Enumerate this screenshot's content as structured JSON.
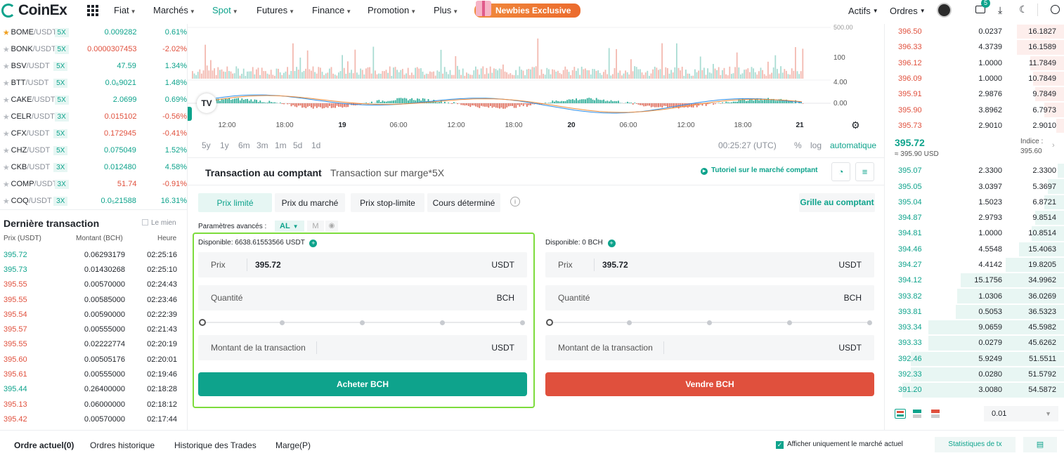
{
  "nav": {
    "logo": "CoinEx",
    "items": [
      {
        "label": "Fiat",
        "left": 162
      },
      {
        "label": "Marchés",
        "left": 218
      },
      {
        "label": "Spot",
        "left": 302
      },
      {
        "label": "Futures",
        "left": 365
      },
      {
        "label": "Finance",
        "left": 444
      },
      {
        "label": "Promotion",
        "left": 523
      },
      {
        "label": "Plus",
        "left": 617
      }
    ],
    "newbies": "Newbies Exclusive",
    "actifs": "Actifs",
    "ordres": "Ordres",
    "notif_count": "5"
  },
  "markets": [
    {
      "base": "BOME",
      "quote": "/USDT",
      "lev": "5X",
      "price": "0.009282",
      "change": "0.61%",
      "dir": "up",
      "fav": true
    },
    {
      "base": "BONK",
      "quote": "/USDT",
      "lev": "5X",
      "price": "0.0000307453",
      "change": "-2.02%",
      "dir": "down",
      "fav": false
    },
    {
      "base": "BSV",
      "quote": "/USDT",
      "lev": "5X",
      "price": "47.59",
      "change": "1.34%",
      "dir": "up",
      "fav": false
    },
    {
      "base": "BTT",
      "quote": "/USDT",
      "lev": "5X",
      "price": "0.0₆9021",
      "change": "1.48%",
      "dir": "up",
      "fav": false
    },
    {
      "base": "CAKE",
      "quote": "/USDT",
      "lev": "5X",
      "price": "2.0699",
      "change": "0.69%",
      "dir": "up",
      "fav": false
    },
    {
      "base": "CELR",
      "quote": "/USDT",
      "lev": "3X",
      "price": "0.015102",
      "change": "-0.56%",
      "dir": "down",
      "fav": false
    },
    {
      "base": "CFX",
      "quote": "/USDT",
      "lev": "5X",
      "price": "0.172945",
      "change": "-0.41%",
      "dir": "down",
      "fav": false
    },
    {
      "base": "CHZ",
      "quote": "/USDT",
      "lev": "5X",
      "price": "0.075049",
      "change": "1.52%",
      "dir": "up",
      "fav": false
    },
    {
      "base": "CKB",
      "quote": "/USDT",
      "lev": "3X",
      "price": "0.012480",
      "change": "4.58%",
      "dir": "up",
      "fav": false
    },
    {
      "base": "COMP",
      "quote": "/USDT",
      "lev": "3X",
      "price": "51.74",
      "change": "-0.91%",
      "dir": "down",
      "fav": false
    },
    {
      "base": "COQ",
      "quote": "/USDT",
      "lev": "3X",
      "price": "0.0₅21588",
      "change": "16.31%",
      "dir": "up",
      "fav": false
    }
  ],
  "last_trade": {
    "title": "Dernière transaction",
    "mine": "Le mien",
    "head_price": "Prix (USDT)",
    "head_amount": "Montant (BCH)",
    "head_time": "Heure",
    "rows": [
      {
        "p": "395.72",
        "a": "0.06293179",
        "t": "02:25:16",
        "dir": "up"
      },
      {
        "p": "395.73",
        "a": "0.01430268",
        "t": "02:25:10",
        "dir": "up"
      },
      {
        "p": "395.55",
        "a": "0.00570000",
        "t": "02:24:43",
        "dir": "down"
      },
      {
        "p": "395.55",
        "a": "0.00585000",
        "t": "02:23:46",
        "dir": "down"
      },
      {
        "p": "395.54",
        "a": "0.00590000",
        "t": "02:22:39",
        "dir": "down"
      },
      {
        "p": "395.57",
        "a": "0.00555000",
        "t": "02:21:43",
        "dir": "down"
      },
      {
        "p": "395.55",
        "a": "0.02222774",
        "t": "02:20:19",
        "dir": "down"
      },
      {
        "p": "395.60",
        "a": "0.00505176",
        "t": "02:20:01",
        "dir": "down"
      },
      {
        "p": "395.61",
        "a": "0.00555000",
        "t": "02:19:46",
        "dir": "down"
      },
      {
        "p": "395.44",
        "a": "0.26400000",
        "t": "02:18:28",
        "dir": "up"
      },
      {
        "p": "395.13",
        "a": "0.06000000",
        "t": "02:18:12",
        "dir": "down"
      },
      {
        "p": "395.42",
        "a": "0.00570000",
        "t": "02:17:44",
        "dir": "down"
      }
    ]
  },
  "chart": {
    "vol_top": "500.00",
    "vol_mid": "100",
    "macd_top": "4.00",
    "macd_zero": "0.00",
    "xticks": [
      "12:00",
      "18:00",
      "19",
      "06:00",
      "12:00",
      "18:00",
      "20",
      "06:00",
      "12:00",
      "18:00",
      "21"
    ],
    "timeframes": [
      "5y",
      "1y",
      "6m",
      "3m",
      "1m",
      "5d",
      "1d"
    ],
    "clock": "00:25:27 (UTC)",
    "pct": "%",
    "log": "log",
    "auto": "automatique"
  },
  "trade": {
    "tab_spot": "Transaction au comptant",
    "tab_margin": "Transaction sur marge*5X",
    "tutorial": "Tutoriel sur le marché comptant",
    "order_types": [
      "Prix limité",
      "Prix du marché",
      "Prix stop-limite",
      "Cours déterminé"
    ],
    "grid": "Grille au comptant",
    "adv_label": "Paramètres avancés :",
    "adv_al": "AL",
    "adv_m": "M",
    "buy": {
      "avail_label": "Disponible:",
      "avail_value": "6638.61553566",
      "avail_unit": "USDT",
      "price_label": "Prix",
      "price_value": "395.72",
      "price_unit": "USDT",
      "qty_label": "Quantité",
      "qty_unit": "BCH",
      "amount_label": "Montant de la transaction",
      "amount_unit": "USDT",
      "button": "Acheter BCH"
    },
    "sell": {
      "avail_label": "Disponible:",
      "avail_value": "0",
      "avail_unit": "BCH",
      "price_label": "Prix",
      "price_value": "395.72",
      "price_unit": "USDT",
      "qty_label": "Quantité",
      "qty_unit": "BCH",
      "amount_label": "Montant de la transaction",
      "amount_unit": "USDT",
      "button": "Vendre BCH"
    }
  },
  "orderbook": {
    "asks": [
      {
        "p": "396.50",
        "q": "0.0237",
        "t": "16.1827",
        "depth": 0.29
      },
      {
        "p": "396.33",
        "q": "4.3739",
        "t": "16.1589",
        "depth": 0.29
      },
      {
        "p": "396.12",
        "q": "1.0000",
        "t": "11.7849",
        "depth": 0.21
      },
      {
        "p": "396.09",
        "q": "1.0000",
        "t": "10.7849",
        "depth": 0.19
      },
      {
        "p": "395.91",
        "q": "2.9876",
        "t": "9.7849",
        "depth": 0.18
      },
      {
        "p": "395.90",
        "q": "3.8962",
        "t": "6.7973",
        "depth": 0.12
      },
      {
        "p": "395.73",
        "q": "2.9010",
        "t": "2.9010",
        "depth": 0.05
      }
    ],
    "mid_price": "395.72",
    "mid_sub": "≈ 395.90 USD",
    "index_label": "Indice :",
    "index_value": "395.60",
    "bids": [
      {
        "p": "395.07",
        "q": "2.3300",
        "t": "2.3300",
        "depth": 0.04
      },
      {
        "p": "395.05",
        "q": "3.0397",
        "t": "5.3697",
        "depth": 0.1
      },
      {
        "p": "395.04",
        "q": "1.5023",
        "t": "6.8721",
        "depth": 0.12
      },
      {
        "p": "394.87",
        "q": "2.9793",
        "t": "9.8514",
        "depth": 0.18
      },
      {
        "p": "394.81",
        "q": "1.0000",
        "t": "10.8514",
        "depth": 0.2
      },
      {
        "p": "394.46",
        "q": "4.5548",
        "t": "15.4063",
        "depth": 0.28
      },
      {
        "p": "394.27",
        "q": "4.4142",
        "t": "19.8205",
        "depth": 0.36
      },
      {
        "p": "394.12",
        "q": "15.1756",
        "t": "34.9962",
        "depth": 0.64
      },
      {
        "p": "393.82",
        "q": "1.0306",
        "t": "36.0269",
        "depth": 0.66
      },
      {
        "p": "393.81",
        "q": "0.5053",
        "t": "36.5323",
        "depth": 0.67
      },
      {
        "p": "393.34",
        "q": "9.0659",
        "t": "45.5982",
        "depth": 0.84
      },
      {
        "p": "393.33",
        "q": "0.0279",
        "t": "45.6262",
        "depth": 0.84
      },
      {
        "p": "392.46",
        "q": "5.9249",
        "t": "51.5511",
        "depth": 0.95
      },
      {
        "p": "392.33",
        "q": "0.0280",
        "t": "51.5792",
        "depth": 0.95
      },
      {
        "p": "391.20",
        "q": "3.0080",
        "t": "54.5872",
        "depth": 1.0
      }
    ],
    "precision": "0.01"
  },
  "bottom": {
    "tabs": [
      "Ordre actuel(0)",
      "Ordres historique",
      "Historique des Trades",
      "Marge(P)"
    ],
    "only_current": "Afficher uniquement le marché actuel",
    "stats": "Statistiques de tx"
  },
  "colors": {
    "up": "#0ea38c",
    "down": "#e0503d",
    "accent": "#0ea38c",
    "highlight": "#7ddc3c"
  }
}
